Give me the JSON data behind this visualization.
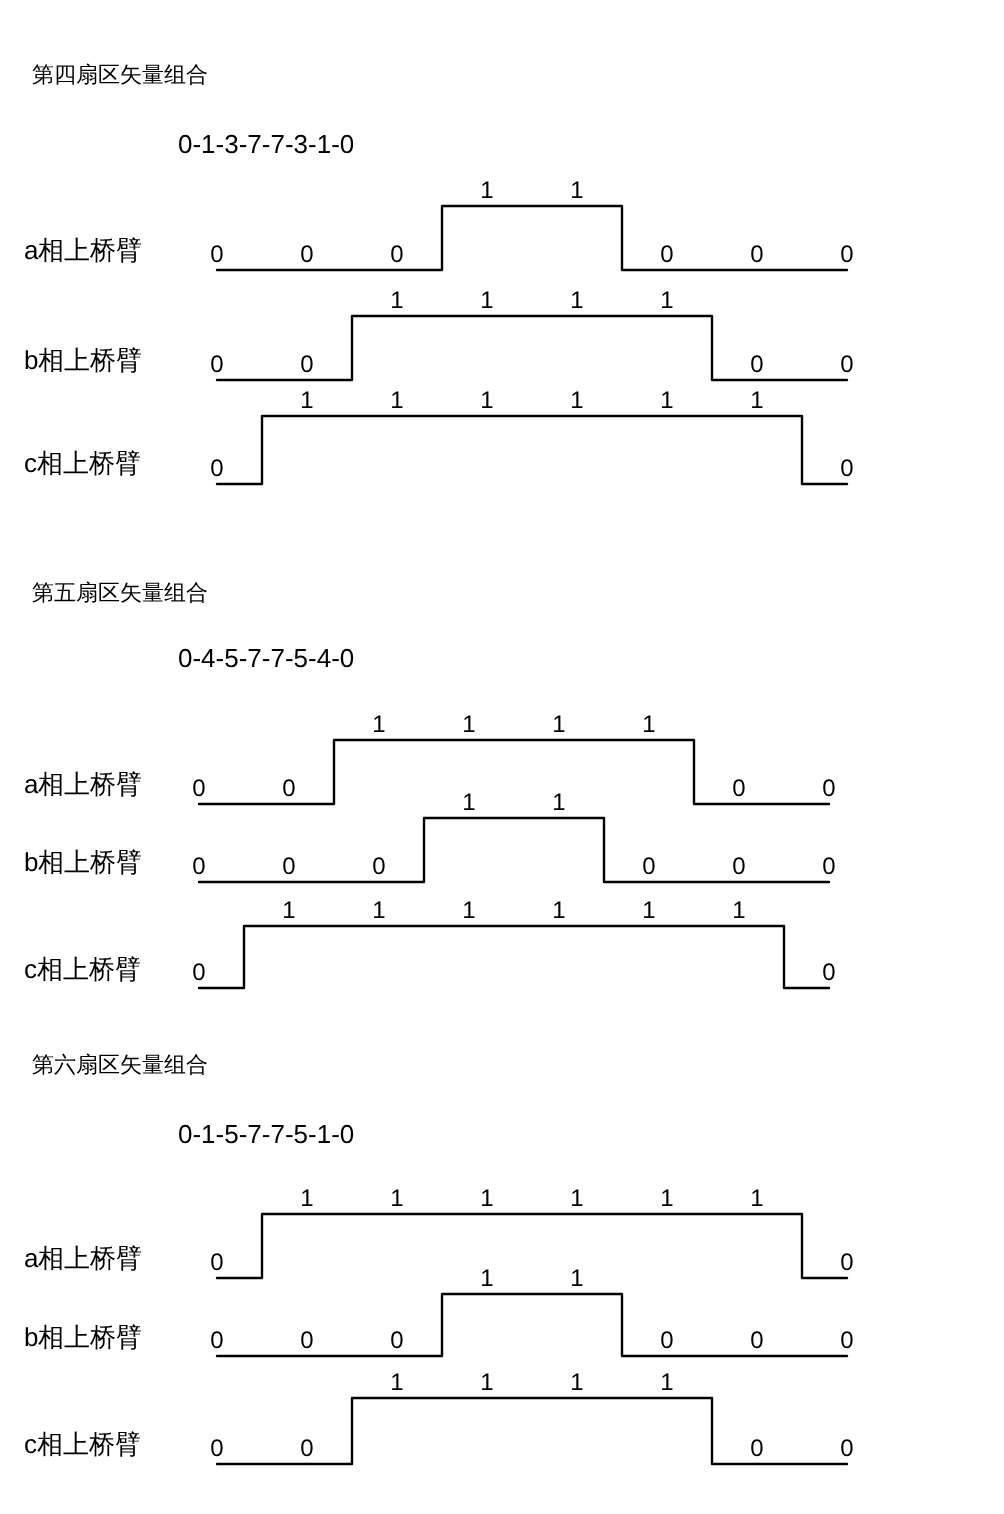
{
  "chart_data": [
    {
      "type": "step",
      "title": "第四扇区矢量组合",
      "subtitle": "0-1-3-7-7-3-1-0",
      "categories": [
        null,
        null,
        null,
        null,
        null,
        null,
        null,
        null
      ],
      "series": [
        {
          "name": "a相上桥臂",
          "color": "#000000",
          "values": [
            0,
            0,
            0,
            1,
            1,
            0,
            0,
            0
          ]
        }
      ],
      "data_labels": true,
      "tick_labels": false
    },
    {
      "type": "step",
      "categories": [
        null,
        null,
        null,
        null,
        null,
        null,
        null,
        null
      ],
      "series": [
        {
          "name": "b相上桥臂",
          "color": "#000000",
          "values": [
            0,
            0,
            1,
            1,
            1,
            1,
            0,
            0
          ]
        }
      ],
      "data_labels": true,
      "tick_labels": false
    },
    {
      "type": "step",
      "categories": [
        null,
        null,
        null,
        null,
        null,
        null,
        null,
        null
      ],
      "series": [
        {
          "name": "c相上桥臂",
          "color": "#000000",
          "values": [
            0,
            1,
            1,
            1,
            1,
            1,
            1,
            0
          ]
        }
      ],
      "data_labels": true,
      "tick_labels": false
    },
    {
      "type": "step",
      "title": "第五扇区矢量组合",
      "subtitle": "0-4-5-7-7-5-4-0",
      "categories": [
        null,
        null,
        null,
        null,
        null,
        null,
        null,
        null
      ],
      "series": [
        {
          "name": "a相上桥臂",
          "color": "#000000",
          "values": [
            0,
            0,
            1,
            1,
            1,
            1,
            0,
            0
          ]
        }
      ],
      "data_labels": true,
      "tick_labels": false
    },
    {
      "type": "step",
      "categories": [
        null,
        null,
        null,
        null,
        null,
        null,
        null,
        null
      ],
      "series": [
        {
          "name": "b相上桥臂",
          "color": "#000000",
          "values": [
            0,
            0,
            0,
            1,
            1,
            0,
            0,
            0
          ]
        }
      ],
      "data_labels": true,
      "tick_labels": false
    },
    {
      "type": "step",
      "categories": [
        null,
        null,
        null,
        null,
        null,
        null,
        null,
        null
      ],
      "series": [
        {
          "name": "c相上桥臂",
          "color": "#000000",
          "values": [
            0,
            1,
            1,
            1,
            1,
            1,
            1,
            0
          ]
        }
      ],
      "data_labels": true,
      "tick_labels": false
    },
    {
      "type": "step",
      "title": "第六扇区矢量组合",
      "subtitle": "0-1-5-7-7-5-1-0",
      "categories": [
        null,
        null,
        null,
        null,
        null,
        null,
        null,
        null
      ],
      "series": [
        {
          "name": "a相上桥臂",
          "color": "#000000",
          "values": [
            0,
            1,
            1,
            1,
            1,
            1,
            1,
            0
          ]
        }
      ],
      "data_labels": true,
      "tick_labels": false
    },
    {
      "type": "step",
      "categories": [
        null,
        null,
        null,
        null,
        null,
        null,
        null,
        null
      ],
      "series": [
        {
          "name": "b相上桥臂",
          "color": "#000000",
          "values": [
            0,
            0,
            0,
            1,
            1,
            0,
            0,
            0
          ]
        }
      ],
      "data_labels": true,
      "tick_labels": false
    },
    {
      "type": "step",
      "categories": [
        null,
        null,
        null,
        null,
        null,
        null,
        null,
        null
      ],
      "series": [
        {
          "name": "c相上桥臂",
          "color": "#000000",
          "values": [
            0,
            0,
            1,
            1,
            1,
            1,
            0,
            0
          ]
        }
      ],
      "data_labels": true,
      "tick_labels": false
    }
  ]
}
